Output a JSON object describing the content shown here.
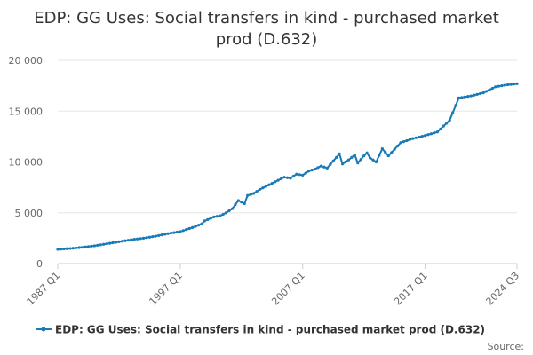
{
  "chart_data": {
    "type": "line",
    "title_line1": "EDP: GG Uses: Social transfers in kind - purchased market",
    "title_line2": "prod (D.632)",
    "xlabel": "",
    "ylabel": "",
    "ylim": [
      0,
      20000
    ],
    "y_ticks": [
      "0",
      "5 000",
      "10 000",
      "15 000",
      "20 000"
    ],
    "x_ticks": [
      "1987 Q1",
      "1997 Q1",
      "2007 Q1",
      "2017 Q1",
      "2024 Q3"
    ],
    "legend_position": "bottom",
    "source_label": "Source:",
    "color": "#1a7ab8",
    "series": [
      {
        "name": "EDP: GG Uses: Social transfers in kind - purchased market prod (D.632)",
        "anchors": [
          [
            "1987 Q1",
            1400
          ],
          [
            "1988 Q1",
            1480
          ],
          [
            "1989 Q1",
            1600
          ],
          [
            "1990 Q1",
            1750
          ],
          [
            "1991 Q1",
            1950
          ],
          [
            "1992 Q1",
            2150
          ],
          [
            "1993 Q1",
            2350
          ],
          [
            "1994 Q1",
            2500
          ],
          [
            "1995 Q1",
            2700
          ],
          [
            "1996 Q1",
            2950
          ],
          [
            "1997 Q1",
            3150
          ],
          [
            "1998 Q1",
            3550
          ],
          [
            "1998 Q4",
            3900
          ],
          [
            "1999 Q1",
            4200
          ],
          [
            "1999 Q4",
            4600
          ],
          [
            "2000 Q2",
            4700
          ],
          [
            "2000 Q4",
            5000
          ],
          [
            "2001 Q2",
            5400
          ],
          [
            "2001 Q4",
            6200
          ],
          [
            "2002 Q2",
            5900
          ],
          [
            "2002 Q3",
            6700
          ],
          [
            "2003 Q1",
            6900
          ],
          [
            "2003 Q3",
            7300
          ],
          [
            "2004 Q1",
            7600
          ],
          [
            "2004 Q3",
            7900
          ],
          [
            "2005 Q1",
            8200
          ],
          [
            "2005 Q3",
            8500
          ],
          [
            "2006 Q1",
            8400
          ],
          [
            "2006 Q3",
            8800
          ],
          [
            "2007 Q1",
            8700
          ],
          [
            "2007 Q3",
            9100
          ],
          [
            "2008 Q1",
            9300
          ],
          [
            "2008 Q3",
            9600
          ],
          [
            "2009 Q1",
            9400
          ],
          [
            "2009 Q3",
            10100
          ],
          [
            "2010 Q1",
            10800
          ],
          [
            "2010 Q2",
            9800
          ],
          [
            "2010 Q4",
            10200
          ],
          [
            "2011 Q2",
            10700
          ],
          [
            "2011 Q3",
            9900
          ],
          [
            "2012 Q1",
            10600
          ],
          [
            "2012 Q2",
            10900
          ],
          [
            "2012 Q3",
            10400
          ],
          [
            "2013 Q1",
            10000
          ],
          [
            "2013 Q3",
            11300
          ],
          [
            "2014 Q1",
            10600
          ],
          [
            "2015 Q1",
            11900
          ],
          [
            "2016 Q1",
            12300
          ],
          [
            "2017 Q1",
            12600
          ],
          [
            "2018 Q1",
            12950
          ],
          [
            "2019 Q1",
            14100
          ],
          [
            "2019 Q4",
            16300
          ],
          [
            "2020 Q4",
            16500
          ],
          [
            "2021 Q4",
            16800
          ],
          [
            "2022 Q4",
            17400
          ],
          [
            "2023 Q4",
            17600
          ],
          [
            "2024 Q3",
            17700
          ]
        ]
      }
    ]
  }
}
